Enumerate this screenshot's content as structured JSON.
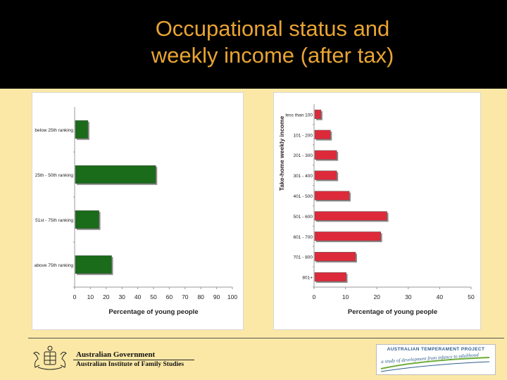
{
  "slide": {
    "title_lines": [
      "Occupational status and",
      "weekly income (after tax)"
    ]
  },
  "chart_data": [
    {
      "type": "bar",
      "orientation": "horizontal",
      "categories": [
        "below 25th ranking",
        "25th - 50th ranking",
        "51st - 75th ranking",
        "above 75th ranking"
      ],
      "values": [
        8,
        51,
        15,
        23
      ],
      "xlabel": "Percentage of young people",
      "ylabel": "",
      "xlim": [
        0,
        100
      ],
      "xticks": [
        0,
        10,
        20,
        30,
        40,
        50,
        60,
        70,
        80,
        90,
        100
      ],
      "bar_color": "#1a6b1a",
      "grid": false
    },
    {
      "type": "bar",
      "orientation": "horizontal",
      "categories": [
        "less than 100",
        "101 - 200",
        "201 - 300",
        "301 - 400",
        "401 - 500",
        "501 - 600",
        "601 - 700",
        "701 - 800",
        "801+"
      ],
      "values": [
        2,
        5,
        7,
        7,
        11,
        23,
        21,
        13,
        10
      ],
      "xlabel": "Percentage of young people",
      "ylabel": "Take-home weekly income",
      "xlim": [
        0,
        50
      ],
      "xticks": [
        0,
        10,
        20,
        30,
        40,
        50
      ],
      "bar_color": "#dd2a3a",
      "grid": false
    }
  ],
  "footer": {
    "gov_line_1": "Australian Government",
    "gov_line_2": "Australian Institute of Family Studies",
    "atp_title": "AUSTRALIAN TEMPERAMENT PROJECT",
    "atp_tagline": "a study of development from infancy to adulthood"
  }
}
